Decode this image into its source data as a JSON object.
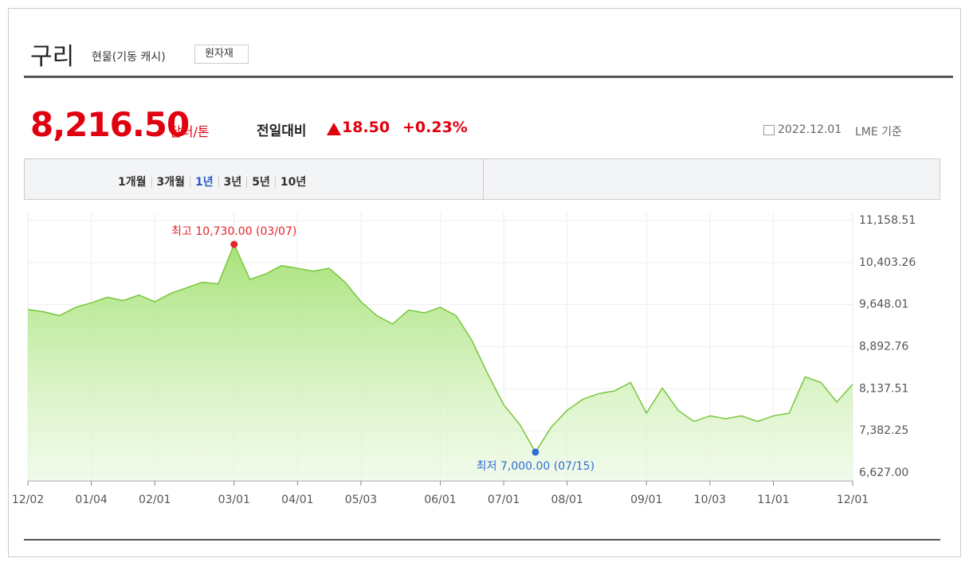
{
  "header": {
    "title": "구리",
    "subtitle": "현물(기동 캐시)",
    "button": "원자재"
  },
  "quote": {
    "price": "8,216.50",
    "unit": "달러/톤",
    "change_label": "전일대비",
    "change": "18.50",
    "change_pct": "+0.23%",
    "date": "2022.12.01",
    "basis": "LME 기준"
  },
  "tabs": {
    "items": [
      "1개월",
      "3개월",
      "1년",
      "3년",
      "5년",
      "10년"
    ],
    "selected": 2
  },
  "chart_data": {
    "type": "area",
    "categories": [
      "12/02",
      null,
      null,
      null,
      "01/04",
      null,
      null,
      null,
      "02/01",
      null,
      null,
      null,
      null,
      "03/01",
      null,
      null,
      null,
      "04/01",
      null,
      null,
      null,
      "05/03",
      null,
      null,
      null,
      null,
      "06/01",
      null,
      null,
      null,
      "07/01",
      null,
      null,
      null,
      "08/01",
      null,
      null,
      null,
      null,
      "09/01",
      null,
      null,
      null,
      "10/03",
      null,
      null,
      null,
      "11/01",
      null,
      null,
      null,
      null,
      "12/01"
    ],
    "values": [
      9560,
      9520,
      9450,
      9600,
      9680,
      9780,
      9720,
      9820,
      9700,
      9850,
      9950,
      10050,
      10020,
      10730,
      10100,
      10200,
      10350,
      10300,
      10250,
      10300,
      10050,
      9700,
      9450,
      9300,
      9550,
      9500,
      9600,
      9450,
      9000,
      8400,
      7850,
      7500,
      7000,
      7450,
      7750,
      7950,
      8050,
      8100,
      8250,
      7700,
      8150,
      7750,
      7550,
      7650,
      7600,
      7650,
      7550,
      7650,
      7700,
      8350,
      8250,
      7900,
      8216.5
    ],
    "color": "#77c63a",
    "annotations": [
      "최고 10,730.00 (03/07)",
      "최저 7,000.00 (07/15)"
    ],
    "high_color": "#e8232a",
    "low_color": "#2f6fd6",
    "ylim": [
      6627,
      11158.51
    ],
    "yticks": [
      {
        "value": 6627,
        "label": "6,627.00"
      },
      {
        "value": 7382.25,
        "label": "7,382.25"
      },
      {
        "value": 8137.51,
        "label": "8,137.51"
      },
      {
        "value": 8892.76,
        "label": "8,892.76"
      },
      {
        "value": 9648.01,
        "label": "9,648.01"
      },
      {
        "value": 10403.26,
        "label": "10,403.26"
      },
      {
        "value": 11158.51,
        "label": "11,158.51"
      }
    ],
    "grid": true
  }
}
